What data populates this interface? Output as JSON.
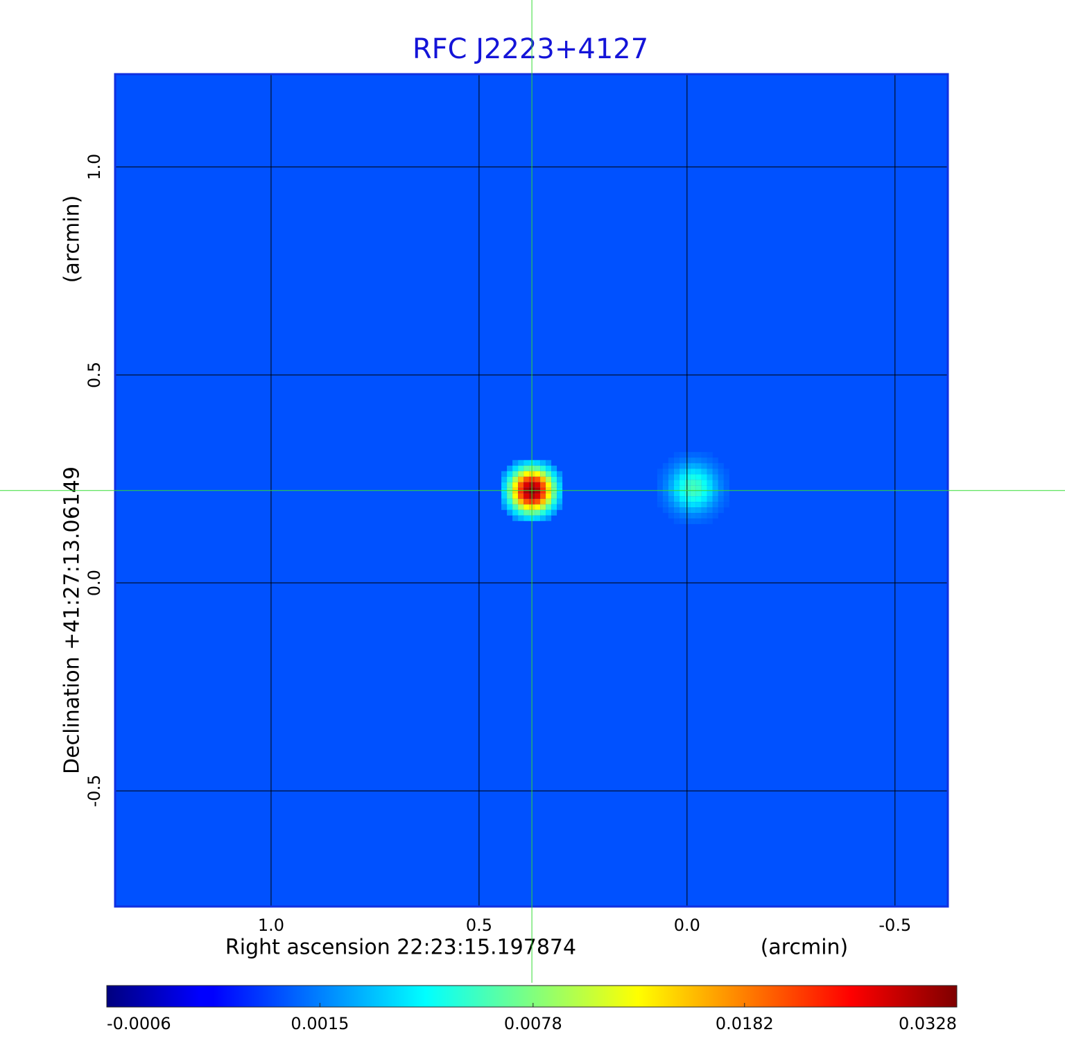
{
  "chart_data": {
    "type": "image",
    "title": "RFC J2223+4127",
    "x_label": "Right ascension  22:23:15.197874",
    "x_unit": "(arcmin)",
    "y_label": "Declination  +41:27:13.06149",
    "y_unit": "(arcmin)",
    "xlim": [
      1.375,
      -0.627
    ],
    "ylim": [
      -0.778,
      1.223
    ],
    "xticks": [
      {
        "value": 1,
        "label": "1.0"
      },
      0.5,
      {
        "value": 0,
        "label": "0.0"
      },
      -0.5
    ],
    "yticks": [
      {
        "value": 1,
        "label": "1.0"
      },
      0.5,
      {
        "value": 0,
        "label": "0.0"
      },
      -0.5
    ],
    "grid": true,
    "colormap": "jet",
    "color_scale": "sqrt",
    "clim": [
      -0.0006,
      0.0328
    ],
    "cticks": [
      -0.0006,
      0.0015,
      0.0078,
      0.0182,
      0.0328
    ],
    "background": 0.0008,
    "sources": [
      {
        "x": 0.373,
        "y": 0.222,
        "peak": 0.0328,
        "size": 0.07
      },
      {
        "x": -0.015,
        "y": 0.228,
        "peak": 0.006,
        "size": 0.08
      }
    ],
    "title_color": "#1414d8",
    "crosshair_color": "#33dd33"
  }
}
